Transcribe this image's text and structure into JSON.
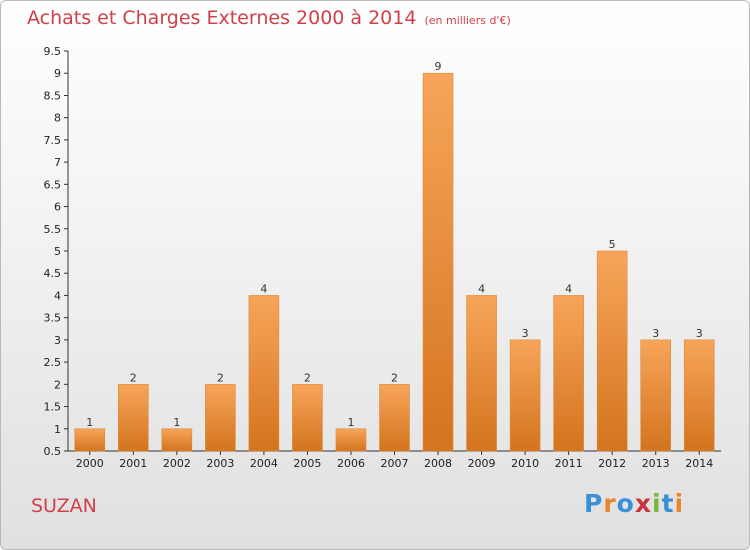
{
  "header": {
    "title": "Achats et Charges Externes 2000 à 2014",
    "subtitle": "(en milliers d'€)"
  },
  "footer": {
    "commune": "SUZAN",
    "logo_text": "Proxiti"
  },
  "colors": {
    "bar_light": "#f7a55a",
    "bar_dark": "#d3741e",
    "title": "#d0404a"
  },
  "chart_data": {
    "type": "bar",
    "title": "Achats et Charges Externes 2000 à 2014",
    "subtitle": "(en milliers d'€)",
    "categories": [
      "2000",
      "2001",
      "2002",
      "2003",
      "2004",
      "2005",
      "2006",
      "2007",
      "2008",
      "2009",
      "2010",
      "2011",
      "2012",
      "2013",
      "2014"
    ],
    "values": [
      1,
      2,
      1,
      2,
      4,
      2,
      1,
      2,
      9,
      4,
      3,
      4,
      5,
      3,
      3
    ],
    "ylim": [
      0.5,
      9.5
    ],
    "yticks": [
      "0.5",
      "1",
      "1.5",
      "2",
      "2.5",
      "3",
      "3.5",
      "4",
      "4.5",
      "5",
      "5.5",
      "6",
      "6.5",
      "7",
      "7.5",
      "8",
      "8.5",
      "9",
      "9.5"
    ],
    "grid": false,
    "legend": "none"
  }
}
